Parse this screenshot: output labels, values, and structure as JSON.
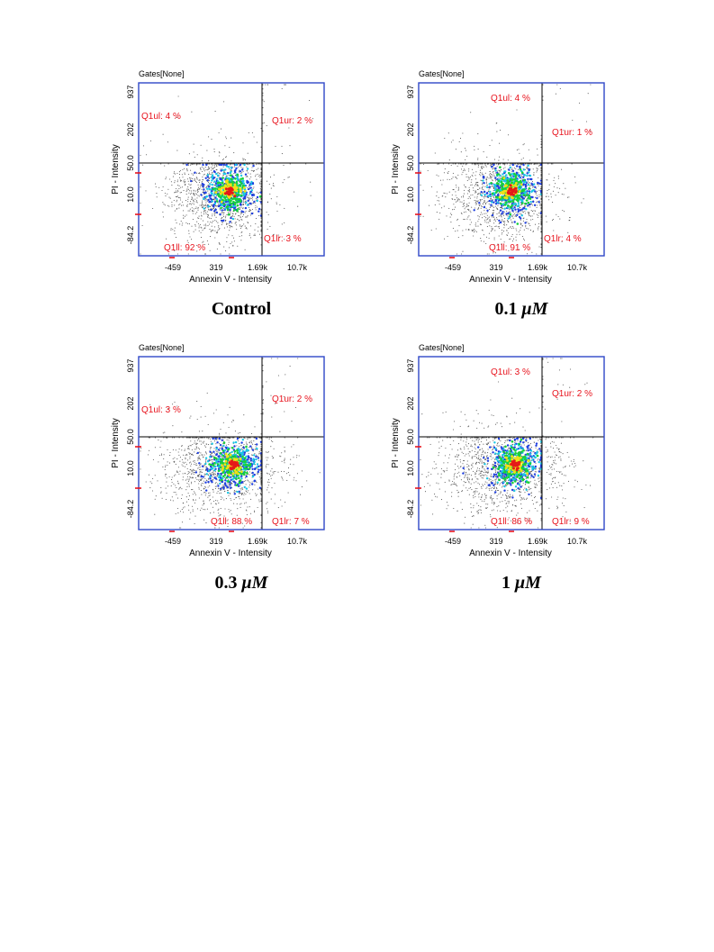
{
  "chart_data": [
    {
      "type": "scatter",
      "title": "Control",
      "gate_label": "Gates[None]",
      "xlabel": "Annexin V - Intensity",
      "ylabel": "PI - Intensity",
      "x_ticks": [
        "-459",
        "319",
        "1.69k",
        "10.7k"
      ],
      "y_ticks": [
        "937",
        "202",
        "50.0",
        "10.0",
        "-84.2"
      ],
      "quadrants": {
        "ul": "Q1ul: 4 %",
        "ur": "Q1ur: 2 %",
        "ll": "Q1ll: 92 %",
        "lr": "Q1lr: 3 %"
      },
      "population": {
        "ul": 4,
        "ur": 2,
        "ll": 92,
        "lr": 3
      },
      "label_pos": {
        "ul": "left",
        "ll": "left"
      }
    },
    {
      "type": "scatter",
      "title": "0.1 μM",
      "title_value": "0.1",
      "title_unit": "μM",
      "gate_label": "Gates[None]",
      "xlabel": "Annexin V - Intensity",
      "ylabel": "PI - Intensity",
      "x_ticks": [
        "-459",
        "319",
        "1.69k",
        "10.7k"
      ],
      "y_ticks": [
        "937",
        "202",
        "50.0",
        "10.0",
        "-84.2"
      ],
      "quadrants": {
        "ul": "Q1ul: 4 %",
        "ur": "Q1ur: 1 %",
        "ll": "Q1ll: 91 %",
        "lr": "Q1lr: 4 %"
      },
      "population": {
        "ul": 4,
        "ur": 1,
        "ll": 91,
        "lr": 4
      },
      "label_pos": {
        "ul": "right",
        "ll": "right"
      }
    },
    {
      "type": "scatter",
      "title": "0.3 μM",
      "title_value": "0.3",
      "title_unit": "μM",
      "gate_label": "Gates[None]",
      "xlabel": "Annexin V - Intensity",
      "ylabel": "PI - Intensity",
      "x_ticks": [
        "-459",
        "319",
        "1.69k",
        "10.7k"
      ],
      "y_ticks": [
        "937",
        "202",
        "50.0",
        "10.0",
        "-84.2"
      ],
      "quadrants": {
        "ul": "Q1ul: 3 %",
        "ur": "Q1ur: 2 %",
        "ll": "Q1ll: 88 %",
        "lr": "Q1lr: 7 %"
      },
      "population": {
        "ul": 3,
        "ur": 2,
        "ll": 88,
        "lr": 7
      },
      "label_pos": {
        "ul": "left",
        "ll": "right"
      }
    },
    {
      "type": "scatter",
      "title": "1 μM",
      "title_value": "1",
      "title_unit": "μM",
      "gate_label": "Gates[None]",
      "xlabel": "Annexin V - Intensity",
      "ylabel": "PI - Intensity",
      "x_ticks": [
        "-459",
        "319",
        "1.69k",
        "10.7k"
      ],
      "y_ticks": [
        "937",
        "202",
        "50.0",
        "10.0",
        "-84.2"
      ],
      "quadrants": {
        "ul": "Q1ul: 3 %",
        "ur": "Q1ur: 2 %",
        "ll": "Q1ll: 86 %",
        "lr": "Q1lr: 9 %"
      },
      "population": {
        "ul": 3,
        "ur": 2,
        "ll": 86,
        "lr": 9
      },
      "label_pos": {
        "ul": "right",
        "ll": "right"
      }
    }
  ],
  "colors": {
    "frame": "#2f47c8",
    "gate_line": "#000000",
    "label": "#e8141e",
    "dots": "#555555",
    "density": [
      "#1f3fe0",
      "#19c8e6",
      "#18d13a",
      "#f2e01a",
      "#e51919"
    ]
  }
}
